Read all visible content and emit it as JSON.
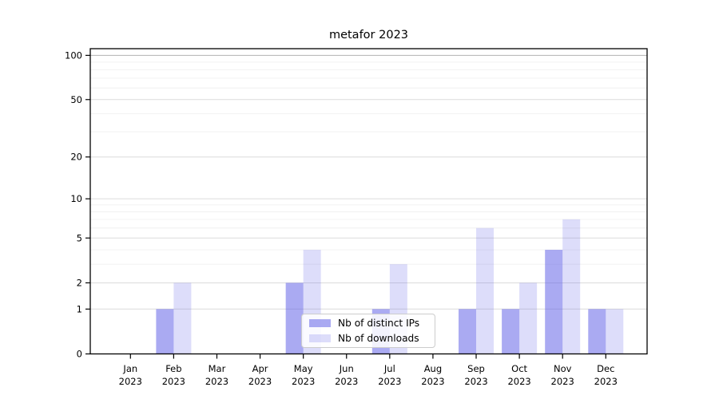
{
  "chart_data": {
    "type": "bar",
    "title": "metafor 2023",
    "categories": [
      "Jan 2023",
      "Feb 2023",
      "Mar 2023",
      "Apr 2023",
      "May 2023",
      "Jun 2023",
      "Jul 2023",
      "Aug 2023",
      "Sep 2023",
      "Oct 2023",
      "Nov 2023",
      "Dec 2023"
    ],
    "series": [
      {
        "name": "Nb of distinct IPs",
        "color": "#5555E680",
        "values": [
          0,
          1,
          0,
          0,
          2,
          0,
          1,
          0,
          1,
          1,
          4,
          1
        ]
      },
      {
        "name": "Nb of downloads",
        "color": "#5555E633",
        "values": [
          0,
          2,
          0,
          0,
          4,
          0,
          3,
          0,
          6,
          2,
          7,
          1
        ]
      }
    ],
    "yscale": "log1p",
    "ylim": [
      0,
      111
    ],
    "yticks": [
      0,
      1,
      2,
      5,
      10,
      20,
      50,
      100
    ],
    "ytick_labels": [
      "0",
      "1",
      "2",
      "5",
      "10",
      "20",
      "50",
      "100"
    ],
    "minor_yticks": [
      3,
      4,
      6,
      7,
      8,
      9,
      30,
      40,
      60,
      70,
      80,
      90
    ],
    "grid": true,
    "legend_position": "lower center",
    "colors": {
      "axis": "#000000",
      "grid_major": "#dcdcdc",
      "grid_decade": "#b3b3b3",
      "grid_minor": "#f0f0f0",
      "text": "#000000",
      "background": "#ffffff"
    }
  }
}
